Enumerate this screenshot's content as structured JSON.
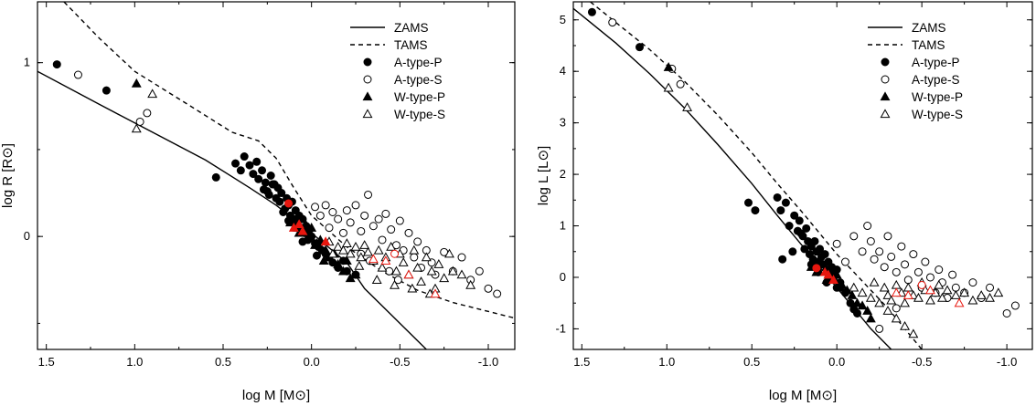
{
  "chart_data": [
    {
      "type": "scatter",
      "xlabel": "log M [M⊙]",
      "ylabel": "log R [R⊙]",
      "xlim": [
        1.55,
        -1.15
      ],
      "ylim": [
        -0.65,
        1.35
      ],
      "x_ticks": [
        1.5,
        1.0,
        0.5,
        0.0,
        -0.5,
        -1.0
      ],
      "x_tick_labels": [
        "1.5",
        "1.0",
        "0.5",
        "0.0",
        "-0.5",
        "-1.0"
      ],
      "y_ticks": [
        0,
        1
      ],
      "y_tick_labels": [
        "0",
        "1"
      ],
      "legend_position": "top-right",
      "legend": [
        "ZAMS",
        "TAMS",
        "A-type-P",
        "A-type-S",
        "W-type-P",
        "W-type-S"
      ],
      "lines": [
        {
          "name": "ZAMS",
          "style": "solid",
          "x": [
            1.55,
            1.2,
            0.9,
            0.6,
            0.35,
            0.2,
            0.0,
            -0.2,
            -0.3,
            -0.45,
            -0.65
          ],
          "y": [
            0.95,
            0.76,
            0.6,
            0.44,
            0.28,
            0.18,
            0.02,
            -0.15,
            -0.3,
            -0.45,
            -0.65
          ]
        },
        {
          "name": "TAMS",
          "style": "dashed",
          "x": [
            1.4,
            1.2,
            1.0,
            0.7,
            0.45,
            0.3,
            0.2,
            0.1,
            0.0,
            -0.2,
            -0.4,
            -0.6,
            -0.8,
            -1.15
          ],
          "y": [
            1.35,
            1.14,
            0.95,
            0.76,
            0.6,
            0.55,
            0.45,
            0.28,
            0.12,
            -0.06,
            -0.2,
            -0.31,
            -0.38,
            -0.47
          ]
        }
      ],
      "series": [
        {
          "name": "A-type-P",
          "marker": "filled-circle",
          "color": "#000000",
          "x": [
            1.44,
            1.16,
            0.54,
            0.43,
            0.4,
            0.38,
            0.35,
            0.33,
            0.31,
            0.3,
            0.28,
            0.26,
            0.25,
            0.23,
            0.22,
            0.2,
            0.19,
            0.18,
            0.17,
            0.15,
            0.14,
            0.13,
            0.12,
            0.11,
            0.1,
            0.09,
            0.08,
            0.07,
            0.06,
            0.05,
            0.04,
            0.03,
            0.02,
            0.01,
            0.0,
            -0.02,
            -0.04,
            -0.06,
            -0.08,
            -0.1,
            -0.12,
            -0.15,
            -0.18,
            -0.2,
            -0.25,
            0.27,
            0.24,
            0.21,
            0.16,
            0.13,
            0.09,
            0.05,
            -0.03
          ],
          "y": [
            0.99,
            0.84,
            0.34,
            0.42,
            0.38,
            0.46,
            0.41,
            0.36,
            0.43,
            0.33,
            0.38,
            0.31,
            0.26,
            0.35,
            0.3,
            0.22,
            0.28,
            0.2,
            0.25,
            0.16,
            0.22,
            0.18,
            0.12,
            0.2,
            0.1,
            0.15,
            0.08,
            0.12,
            0.05,
            0.1,
            0.02,
            0.06,
            -0.02,
            0.04,
            0.0,
            -0.04,
            -0.06,
            -0.08,
            -0.1,
            -0.12,
            -0.15,
            -0.18,
            -0.14,
            -0.2,
            -0.22,
            0.27,
            0.24,
            0.3,
            0.14,
            0.09,
            0.05,
            -0.03,
            -0.11
          ]
        },
        {
          "name": "A-type-S",
          "marker": "open-circle",
          "color": "#000000",
          "x": [
            1.32,
            0.97,
            0.93,
            -0.02,
            -0.05,
            -0.08,
            -0.1,
            -0.12,
            -0.15,
            -0.18,
            -0.2,
            -0.22,
            -0.25,
            -0.28,
            -0.3,
            -0.32,
            -0.35,
            -0.38,
            -0.4,
            -0.42,
            -0.45,
            -0.48,
            -0.5,
            -0.52,
            -0.55,
            -0.58,
            -0.6,
            -0.62,
            -0.65,
            -0.68,
            -0.7,
            -0.75,
            -0.8,
            -0.85,
            -0.9,
            -0.95,
            -1.0,
            -1.05,
            -0.28,
            -0.33,
            -0.44,
            -0.49
          ],
          "y": [
            0.93,
            0.66,
            0.71,
            0.17,
            0.12,
            0.18,
            0.05,
            0.14,
            0.1,
            0.02,
            0.15,
            0.08,
            0.18,
            0.03,
            0.12,
            0.24,
            0.06,
            0.1,
            -0.02,
            0.13,
            0.04,
            -0.05,
            0.09,
            -0.08,
            0.02,
            -0.12,
            -0.03,
            -0.18,
            -0.08,
            -0.15,
            -0.22,
            -0.09,
            -0.2,
            -0.12,
            -0.25,
            -0.2,
            -0.3,
            -0.33,
            -0.1,
            -0.14,
            -0.2,
            -0.25
          ]
        },
        {
          "name": "W-type-P",
          "marker": "filled-triangle",
          "color": "#000000",
          "x": [
            0.99,
            0.12,
            0.08,
            0.05,
            0.03,
            0.0,
            -0.03,
            -0.05,
            -0.08,
            -0.1,
            -0.13,
            -0.15,
            -0.18,
            -0.2,
            -0.22,
            -0.25,
            0.07,
            0.02,
            -0.02,
            -0.07
          ],
          "y": [
            0.88,
            0.08,
            0.05,
            0.1,
            0.02,
            0.05,
            -0.04,
            -0.02,
            -0.08,
            -0.12,
            -0.1,
            -0.16,
            -0.2,
            -0.14,
            -0.24,
            -0.22,
            0.02,
            -0.01,
            -0.05,
            -0.14
          ]
        },
        {
          "name": "W-type-S",
          "marker": "open-triangle",
          "color": "#000000",
          "x": [
            0.9,
            0.99,
            -0.1,
            -0.15,
            -0.18,
            -0.2,
            -0.22,
            -0.25,
            -0.28,
            -0.3,
            -0.32,
            -0.35,
            -0.38,
            -0.4,
            -0.42,
            -0.45,
            -0.48,
            -0.5,
            -0.52,
            -0.55,
            -0.58,
            -0.6,
            -0.62,
            -0.65,
            -0.68,
            -0.7,
            -0.72,
            -0.75,
            -0.78,
            -0.8,
            -0.85,
            -0.9,
            -0.12,
            -0.27,
            -0.37,
            -0.47,
            -0.57,
            -0.67
          ],
          "y": [
            0.82,
            0.62,
            -0.03,
            -0.06,
            -0.08,
            -0.04,
            -0.1,
            -0.06,
            -0.12,
            -0.05,
            -0.09,
            -0.14,
            -0.08,
            -0.18,
            -0.12,
            -0.06,
            -0.2,
            -0.1,
            -0.15,
            -0.22,
            -0.08,
            -0.18,
            -0.26,
            -0.12,
            -0.2,
            -0.3,
            -0.16,
            -0.24,
            -0.1,
            -0.2,
            -0.22,
            -0.28,
            -0.1,
            -0.17,
            -0.25,
            -0.28,
            -0.3,
            -0.33
          ]
        },
        {
          "name": "",
          "marker": "filled-circle",
          "color": "#e8170f",
          "x": [
            0.13
          ],
          "y": [
            0.19
          ]
        },
        {
          "name": "",
          "marker": "filled-triangle",
          "color": "#e8170f",
          "x": [
            0.1,
            0.07,
            0.05,
            -0.08
          ],
          "y": [
            0.05,
            0.07,
            0.03,
            -0.03
          ]
        },
        {
          "name": "",
          "marker": "open-circle",
          "color": "#e8170f",
          "x": [
            -0.47
          ],
          "y": [
            -0.1
          ]
        },
        {
          "name": "",
          "marker": "open-triangle",
          "color": "#e8170f",
          "x": [
            -0.35,
            -0.42,
            -0.55,
            -0.7
          ],
          "y": [
            -0.13,
            -0.14,
            -0.22,
            -0.33
          ]
        }
      ]
    },
    {
      "type": "scatter",
      "xlabel": "log M [M⊙]",
      "ylabel": "log L [L⊙]",
      "xlim": [
        1.55,
        -1.15
      ],
      "ylim": [
        -1.4,
        5.35
      ],
      "x_ticks": [
        1.5,
        1.0,
        0.5,
        0.0,
        -0.5,
        -1.0
      ],
      "x_tick_labels": [
        "1.5",
        "1.0",
        "0.5",
        "0.0",
        "-0.5",
        "-1.0"
      ],
      "y_ticks": [
        -1,
        0,
        1,
        2,
        3,
        4,
        5
      ],
      "y_tick_labels": [
        "-1",
        "0",
        "1",
        "2",
        "3",
        "4",
        "5"
      ],
      "legend_position": "top-right",
      "legend": [
        "ZAMS",
        "TAMS",
        "A-type-P",
        "A-type-S",
        "W-type-P",
        "W-type-S"
      ],
      "lines": [
        {
          "name": "ZAMS",
          "style": "solid",
          "x": [
            1.55,
            1.3,
            1.1,
            0.9,
            0.7,
            0.5,
            0.35,
            0.2,
            0.1,
            0.0,
            -0.1,
            -0.2,
            -0.32
          ],
          "y": [
            5.22,
            4.55,
            3.95,
            3.3,
            2.58,
            1.82,
            1.2,
            0.6,
            0.2,
            -0.2,
            -0.6,
            -1.0,
            -1.4
          ]
        },
        {
          "name": "TAMS",
          "style": "dashed",
          "x": [
            1.45,
            1.3,
            1.1,
            0.9,
            0.7,
            0.5,
            0.35,
            0.2,
            0.1,
            0.0,
            -0.1,
            -0.2,
            -0.3,
            -0.4,
            -0.5
          ],
          "y": [
            5.35,
            4.95,
            4.42,
            3.82,
            3.15,
            2.42,
            1.82,
            1.25,
            0.85,
            0.45,
            0.1,
            -0.25,
            -0.6,
            -1.0,
            -1.4
          ]
        }
      ],
      "series": [
        {
          "name": "A-type-P",
          "marker": "filled-circle",
          "color": "#000000",
          "x": [
            1.44,
            1.16,
            0.52,
            0.48,
            0.35,
            0.33,
            0.3,
            0.28,
            0.25,
            0.23,
            0.22,
            0.2,
            0.19,
            0.18,
            0.17,
            0.16,
            0.15,
            0.14,
            0.13,
            0.12,
            0.11,
            0.1,
            0.09,
            0.08,
            0.07,
            0.06,
            0.05,
            0.04,
            0.03,
            0.02,
            0.01,
            0.0,
            -0.02,
            -0.05,
            -0.08,
            -0.1,
            -0.12,
            0.32,
            0.26,
            0.21,
            0.15,
            0.11,
            0.06,
            0.0
          ],
          "y": [
            5.15,
            4.47,
            1.45,
            1.3,
            1.55,
            1.3,
            1.45,
            1.0,
            1.2,
            0.9,
            1.1,
            0.8,
            0.55,
            0.95,
            0.7,
            0.45,
            0.6,
            0.35,
            0.7,
            0.5,
            0.3,
            0.55,
            0.4,
            0.25,
            0.45,
            0.15,
            0.3,
            0.1,
            0.2,
            -0.05,
            0.05,
            0.15,
            -0.1,
            -0.3,
            -0.5,
            -0.62,
            -0.7,
            0.35,
            0.5,
            0.85,
            0.25,
            0.1,
            -0.1,
            -0.2
          ]
        },
        {
          "name": "A-type-S",
          "marker": "open-circle",
          "color": "#000000",
          "x": [
            1.32,
            0.97,
            0.92,
            0.0,
            -0.05,
            -0.1,
            -0.15,
            -0.18,
            -0.2,
            -0.22,
            -0.25,
            -0.28,
            -0.3,
            -0.32,
            -0.35,
            -0.38,
            -0.4,
            -0.42,
            -0.45,
            -0.48,
            -0.5,
            -0.52,
            -0.55,
            -0.58,
            -0.6,
            -0.62,
            -0.65,
            -0.68,
            -0.7,
            -0.75,
            -0.8,
            -0.85,
            -0.9,
            -1.0,
            -1.05,
            -0.25,
            -0.35
          ],
          "y": [
            4.95,
            4.05,
            3.75,
            0.65,
            0.3,
            0.8,
            0.5,
            1.0,
            0.7,
            0.35,
            0.5,
            0.2,
            0.8,
            0.4,
            0.1,
            0.6,
            0.25,
            -0.05,
            0.45,
            0.1,
            -0.2,
            0.3,
            0.0,
            -0.3,
            0.15,
            -0.1,
            -0.4,
            0.05,
            -0.2,
            -0.3,
            -0.1,
            -0.4,
            -0.2,
            -0.7,
            -0.55,
            -1.0,
            -0.6
          ]
        },
        {
          "name": "W-type-P",
          "marker": "filled-triangle",
          "color": "#000000",
          "x": [
            0.99,
            0.15,
            0.12,
            0.09,
            0.06,
            0.03,
            0.0,
            -0.03,
            -0.06,
            -0.09,
            -0.12,
            -0.15,
            -0.18,
            -0.2,
            0.05,
            0.02,
            -0.02
          ],
          "y": [
            4.08,
            0.2,
            0.1,
            0.25,
            -0.05,
            0.15,
            0.05,
            -0.15,
            -0.25,
            -0.35,
            -0.5,
            -0.55,
            -0.65,
            -0.8,
            0.0,
            -0.05,
            -0.2
          ]
        },
        {
          "name": "W-type-S",
          "marker": "open-triangle",
          "color": "#000000",
          "x": [
            0.99,
            0.88,
            -0.1,
            -0.15,
            -0.2,
            -0.22,
            -0.25,
            -0.28,
            -0.3,
            -0.32,
            -0.35,
            -0.38,
            -0.4,
            -0.42,
            -0.45,
            -0.48,
            -0.5,
            -0.52,
            -0.55,
            -0.58,
            -0.6,
            -0.62,
            -0.65,
            -0.7,
            -0.75,
            -0.8,
            -0.85,
            -0.9,
            -0.95,
            -0.3,
            -0.35,
            -0.4,
            -0.45
          ],
          "y": [
            3.68,
            3.3,
            -0.2,
            -0.3,
            -0.4,
            -0.1,
            -0.5,
            -0.2,
            -0.35,
            -0.45,
            -0.15,
            -0.3,
            -0.5,
            -0.2,
            -0.35,
            -0.4,
            -0.1,
            -0.25,
            -0.45,
            -0.3,
            -0.15,
            -0.4,
            -0.25,
            -0.35,
            -0.3,
            -0.45,
            -0.35,
            -0.4,
            -0.3,
            -0.65,
            -0.8,
            -0.95,
            -1.1
          ]
        },
        {
          "name": "",
          "marker": "filled-circle",
          "color": "#e8170f",
          "x": [
            0.12
          ],
          "y": [
            0.18
          ]
        },
        {
          "name": "",
          "marker": "filled-triangle",
          "color": "#e8170f",
          "x": [
            0.07,
            0.05,
            0.02
          ],
          "y": [
            0.1,
            0.05,
            -0.05
          ]
        },
        {
          "name": "",
          "marker": "open-circle",
          "color": "#e8170f",
          "x": [
            -0.5
          ],
          "y": [
            -0.15
          ]
        },
        {
          "name": "",
          "marker": "open-triangle",
          "color": "#e8170f",
          "x": [
            -0.35,
            -0.42,
            -0.55,
            -0.72
          ],
          "y": [
            -0.3,
            -0.35,
            -0.25,
            -0.5
          ]
        }
      ]
    }
  ]
}
